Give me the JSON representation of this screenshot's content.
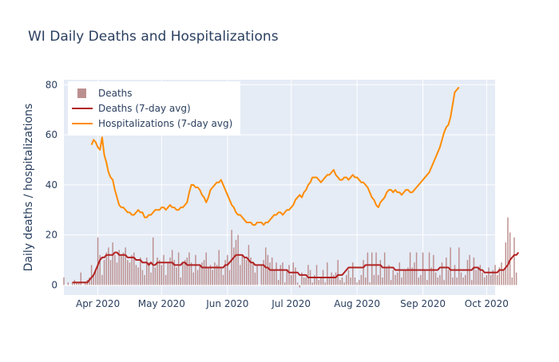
{
  "chart_data": {
    "type": "bar+line",
    "title": "WI Daily Deaths and Hospitalizations",
    "xlabel": "",
    "ylabel": "Daily deaths / hospitalizations",
    "x_start": "2020-03-20",
    "xlim": [
      "2020-03-16",
      "2020-10-05"
    ],
    "ylim": [
      -4,
      82
    ],
    "yticks": [
      0,
      20,
      40,
      60,
      80
    ],
    "xticks": [
      {
        "date": "2020-04-01",
        "label": "Apr 2020"
      },
      {
        "date": "2020-05-01",
        "label": "May 2020"
      },
      {
        "date": "2020-06-01",
        "label": "Jun 2020"
      },
      {
        "date": "2020-07-01",
        "label": "Jul 2020"
      },
      {
        "date": "2020-08-01",
        "label": "Aug 2020"
      },
      {
        "date": "2020-09-01",
        "label": "Sep 2020"
      },
      {
        "date": "2020-10-01",
        "label": "Oct 2020"
      }
    ],
    "grid": true,
    "legend_position": "top-left",
    "colors": {
      "deaths_bar": "#bc8f8f",
      "deaths_avg": "#b22222",
      "hosp_avg": "#ff8c00",
      "plot_bg": "#e5ecf6"
    },
    "series": [
      {
        "name": "Deaths",
        "type": "bar",
        "start": "2020-03-16",
        "values": [
          3,
          0,
          1,
          0,
          1,
          2,
          1,
          1,
          5,
          0,
          1,
          2,
          3,
          8,
          4,
          6,
          19,
          12,
          4,
          10,
          13,
          15,
          10,
          17,
          12,
          9,
          14,
          12,
          13,
          15,
          10,
          9,
          12,
          13,
          8,
          7,
          11,
          6,
          4,
          11,
          9,
          5,
          19,
          7,
          11,
          10,
          8,
          12,
          4,
          9,
          11,
          14,
          10,
          7,
          13,
          3,
          9,
          10,
          11,
          13,
          9,
          5,
          12,
          6,
          8,
          9,
          10,
          13,
          7,
          8,
          6,
          9,
          8,
          14,
          7,
          4,
          10,
          12,
          6,
          22,
          15,
          18,
          20,
          8,
          12,
          11,
          10,
          16,
          11,
          9,
          5,
          8,
          0,
          8,
          10,
          15,
          12,
          9,
          11,
          6,
          9,
          2,
          8,
          9,
          1,
          6,
          8,
          4,
          9,
          7,
          1,
          -1,
          5,
          3,
          3,
          8,
          6,
          1,
          4,
          8,
          2,
          3,
          6,
          1,
          9,
          3,
          5,
          4,
          5,
          10,
          2,
          3,
          1,
          4,
          6,
          3,
          9,
          3,
          1,
          2,
          4,
          10,
          3,
          13,
          1,
          13,
          4,
          13,
          4,
          10,
          3,
          13,
          7,
          8,
          2,
          6,
          4,
          5,
          9,
          3,
          6,
          6,
          7,
          13,
          7,
          9,
          13,
          3,
          4,
          13,
          6,
          2,
          13,
          7,
          12,
          5,
          3,
          4,
          9,
          2,
          11,
          6,
          15,
          3,
          8,
          3,
          15,
          5,
          3,
          4,
          10,
          12,
          2,
          11,
          6,
          7,
          8,
          5,
          3,
          4,
          7,
          4,
          6,
          8,
          4,
          7,
          9,
          6,
          17,
          27,
          21,
          3,
          19,
          5
        ]
      },
      {
        "name": "Deaths (7-day avg)",
        "type": "line",
        "start": "2020-03-20",
        "values": [
          1,
          1,
          1,
          1,
          1,
          1,
          1,
          1,
          2,
          3,
          4,
          6,
          8,
          10,
          11,
          11,
          12,
          12,
          12,
          12,
          13,
          13,
          12,
          12,
          12,
          12,
          11,
          11,
          11,
          11,
          10,
          10,
          10,
          9,
          9,
          9,
          8,
          9,
          8,
          8,
          9,
          9,
          9,
          9,
          9,
          9,
          9,
          9,
          8,
          8,
          8,
          8,
          9,
          9,
          8,
          8,
          8,
          8,
          8,
          8,
          8,
          7,
          7,
          7,
          7,
          7,
          7,
          7,
          7,
          7,
          7,
          7,
          8,
          8,
          9,
          10,
          11,
          12,
          12,
          12,
          12,
          11,
          11,
          10,
          9,
          9,
          8,
          8,
          8,
          8,
          8,
          7,
          7,
          6,
          6,
          6,
          6,
          6,
          6,
          6,
          6,
          6,
          5,
          5,
          5,
          5,
          5,
          4,
          4,
          4,
          4,
          3,
          3,
          3,
          3,
          3,
          3,
          3,
          3,
          3,
          3,
          3,
          3,
          3,
          3,
          4,
          4,
          4,
          5,
          6,
          7,
          7,
          7,
          7,
          7,
          7,
          7,
          7,
          8,
          8,
          8,
          8,
          8,
          8,
          8,
          8,
          7,
          7,
          7,
          7,
          7,
          7,
          6,
          6,
          6,
          6,
          6,
          6,
          6,
          6,
          6,
          6,
          6,
          6,
          6,
          6,
          6,
          6,
          6,
          6,
          6,
          6,
          6,
          7,
          7,
          7,
          7,
          7,
          6,
          6,
          6,
          6,
          6,
          6,
          6,
          6,
          6,
          6,
          6,
          7,
          7,
          7,
          6,
          6,
          5,
          5,
          5,
          5,
          5,
          5,
          5,
          6,
          6,
          6,
          7,
          8,
          10,
          11,
          12,
          12,
          13
        ]
      },
      {
        "name": "Hospitalizations (7-day avg)",
        "type": "line",
        "start": "2020-03-29",
        "values": [
          56,
          58,
          57,
          55,
          54,
          59,
          52,
          49,
          45,
          43,
          42,
          38,
          35,
          32,
          31,
          31,
          30,
          29,
          29,
          28,
          28,
          29,
          30,
          29,
          29,
          27,
          27,
          28,
          28,
          29,
          30,
          30,
          30,
          31,
          31,
          30,
          31,
          32,
          31,
          31,
          30,
          30,
          31,
          31,
          32,
          33,
          37,
          40,
          40,
          39,
          39,
          38,
          36,
          35,
          33,
          35,
          38,
          39,
          40,
          41,
          41,
          42,
          40,
          38,
          36,
          34,
          32,
          31,
          29,
          28,
          28,
          27,
          26,
          25,
          25,
          25,
          24,
          24,
          25,
          25,
          25,
          24,
          25,
          25,
          26,
          27,
          28,
          28,
          29,
          29,
          28,
          29,
          30,
          30,
          31,
          32,
          34,
          35,
          36,
          35,
          37,
          38,
          40,
          41,
          43,
          43,
          43,
          42,
          41,
          42,
          43,
          44,
          44,
          45,
          46,
          44,
          43,
          42,
          42,
          43,
          43,
          42,
          43,
          44,
          43,
          43,
          42,
          41,
          41,
          40,
          39,
          37,
          35,
          34,
          32,
          31,
          33,
          34,
          35,
          37,
          38,
          38,
          37,
          38,
          37,
          37,
          36,
          37,
          38,
          38,
          37,
          37,
          38,
          39,
          40,
          41,
          42,
          43,
          44,
          45,
          47,
          49,
          51,
          53,
          55,
          58,
          61,
          63,
          64,
          67,
          72,
          77,
          78,
          79
        ]
      }
    ]
  }
}
